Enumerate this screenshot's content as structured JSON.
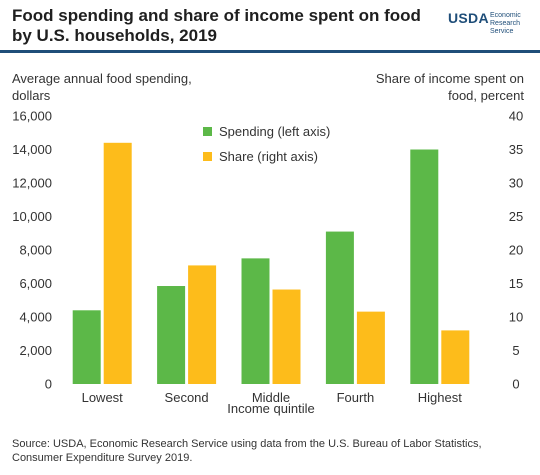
{
  "header": {
    "title": "Food spending and share of income spent on food by U.S. households, 2019",
    "logo_text": "USDA",
    "logo_org": "Economic Research Service"
  },
  "footer": {
    "source": "Source: USDA, Economic Research Service using data from the U.S. Bureau of Labor Statistics, Consumer Expenditure Survey 2019."
  },
  "colors": {
    "spending": "#5cb848",
    "share": "#fdbc1b",
    "brand": "#1f4e79"
  },
  "chart_data": {
    "type": "bar",
    "title": "Food spending and share of income spent on food by U.S. households, 2019",
    "xlabel": "Income quintile",
    "ylabel": "Average annual food spending, dollars",
    "ylabel_right": "Share of income spent on food, percent",
    "categories": [
      "Lowest",
      "Second",
      "Middle",
      "Fourth",
      "Highest"
    ],
    "series": [
      {
        "name": "Spending (left axis)",
        "axis": "left",
        "values": [
          4400,
          5850,
          7500,
          9100,
          14000
        ]
      },
      {
        "name": "Share (right axis)",
        "axis": "right",
        "values": [
          36,
          17.7,
          14.1,
          10.8,
          8
        ]
      }
    ],
    "ylim": [
      0,
      16000
    ],
    "ylim_right": [
      0,
      40
    ],
    "yticks": [
      "0",
      "2,000",
      "4,000",
      "6,000",
      "8,000",
      "10,000",
      "12,000",
      "14,000",
      "16,000"
    ],
    "yticks_right": [
      "0",
      "5",
      "10",
      "15",
      "20",
      "25",
      "30",
      "35",
      "40"
    ],
    "grid": false,
    "legend": "top-center"
  }
}
